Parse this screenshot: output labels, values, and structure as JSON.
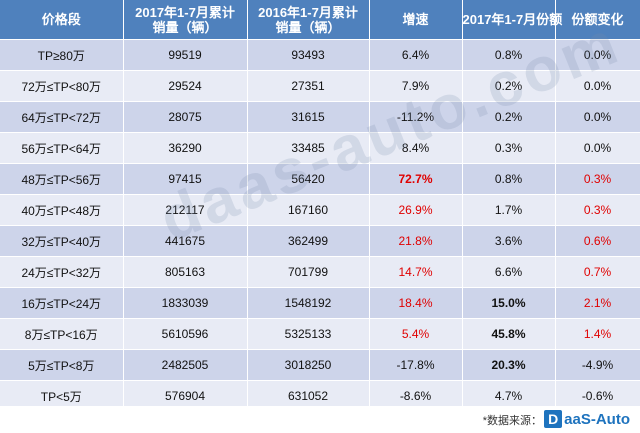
{
  "headers": [
    "价格段",
    "2017年1-7月累计\n销量（辆）",
    "2016年1-7月累计\n销量（辆）",
    "增速",
    "2017年1-7月份额",
    "份额变化"
  ],
  "rows": [
    {
      "segment": "TP≥80万",
      "sales2017": "99519",
      "sales2016": "93493",
      "growth": "6.4%",
      "share2017": "0.8%",
      "share_change": "0.0%",
      "growth_red": false,
      "share_bold": false,
      "change_red": false
    },
    {
      "segment": "72万≤TP<80万",
      "sales2017": "29524",
      "sales2016": "27351",
      "growth": "7.9%",
      "share2017": "0.2%",
      "share_change": "0.0%",
      "growth_red": false,
      "share_bold": false,
      "change_red": false
    },
    {
      "segment": "64万≤TP<72万",
      "sales2017": "28075",
      "sales2016": "31615",
      "growth": "-11.2%",
      "share2017": "0.2%",
      "share_change": "0.0%",
      "growth_red": false,
      "share_bold": false,
      "change_red": false
    },
    {
      "segment": "56万≤TP<64万",
      "sales2017": "36290",
      "sales2016": "33485",
      "growth": "8.4%",
      "share2017": "0.3%",
      "share_change": "0.0%",
      "growth_red": false,
      "share_bold": false,
      "change_red": false
    },
    {
      "segment": "48万≤TP<56万",
      "sales2017": "97415",
      "sales2016": "56420",
      "growth": "72.7%",
      "share2017": "0.8%",
      "share_change": "0.3%",
      "growth_red": true,
      "growth_bold": true,
      "share_bold": false,
      "change_red": true
    },
    {
      "segment": "40万≤TP<48万",
      "sales2017": "212117",
      "sales2016": "167160",
      "growth": "26.9%",
      "share2017": "1.7%",
      "share_change": "0.3%",
      "growth_red": true,
      "share_bold": false,
      "change_red": true
    },
    {
      "segment": "32万≤TP<40万",
      "sales2017": "441675",
      "sales2016": "362499",
      "growth": "21.8%",
      "share2017": "3.6%",
      "share_change": "0.6%",
      "growth_red": true,
      "share_bold": false,
      "change_red": true
    },
    {
      "segment": "24万≤TP<32万",
      "sales2017": "805163",
      "sales2016": "701799",
      "growth": "14.7%",
      "share2017": "6.6%",
      "share_change": "0.7%",
      "growth_red": true,
      "share_bold": false,
      "change_red": true
    },
    {
      "segment": "16万≤TP<24万",
      "sales2017": "1833039",
      "sales2016": "1548192",
      "growth": "18.4%",
      "share2017": "15.0%",
      "share_change": "2.1%",
      "growth_red": true,
      "share_bold": true,
      "change_red": true
    },
    {
      "segment": "8万≤TP<16万",
      "sales2017": "5610596",
      "sales2016": "5325133",
      "growth": "5.4%",
      "share2017": "45.8%",
      "share_change": "1.4%",
      "growth_red": true,
      "share_bold": true,
      "change_red": true
    },
    {
      "segment": "5万≤TP<8万",
      "sales2017": "2482505",
      "sales2016": "3018250",
      "growth": "-17.8%",
      "share2017": "20.3%",
      "share_change": "-4.9%",
      "growth_red": false,
      "share_bold": true,
      "change_red": false
    },
    {
      "segment": "TP<5万",
      "sales2017": "576904",
      "sales2016": "631052",
      "growth": "-8.6%",
      "share2017": "4.7%",
      "share_change": "-0.6%",
      "growth_red": false,
      "share_bold": false,
      "change_red": false
    }
  ],
  "watermark": "daas-auto.com",
  "source_label": "*数据来源：",
  "logo": {
    "mark": "D",
    "text": "aaS-Auto",
    "color": "#1e73be"
  },
  "colors": {
    "header": "#4f81bd",
    "row_dark": "#cdd4ea",
    "row_light": "#e8ebf5",
    "highlight": "#e00000"
  }
}
